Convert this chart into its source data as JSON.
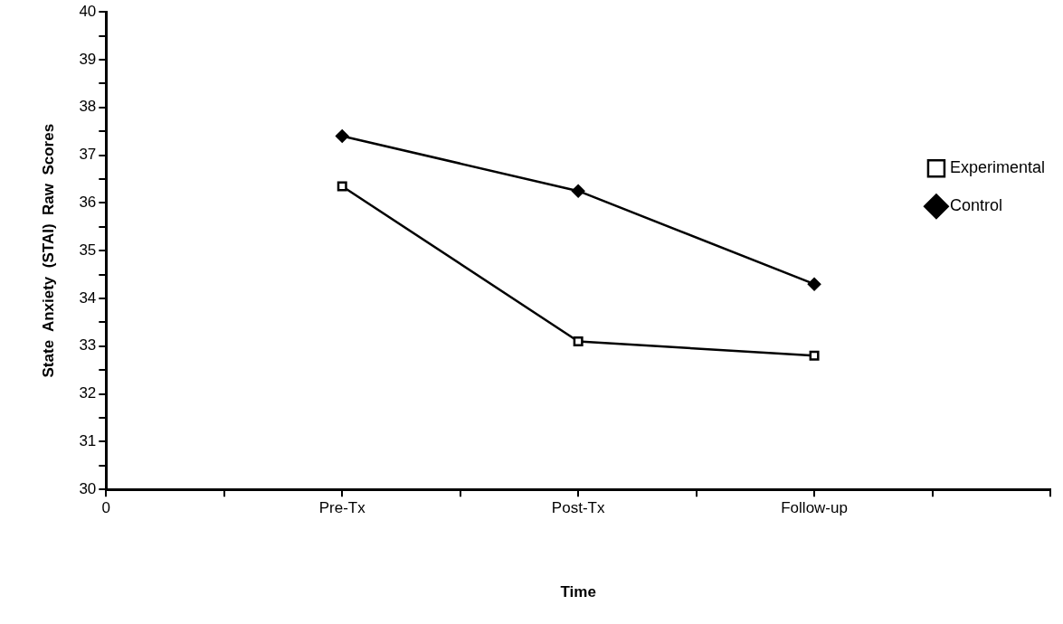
{
  "chart_data": {
    "type": "line",
    "xlabel": "Time",
    "ylabel": "State  Anxiety  (STAI)  Raw  Scores",
    "categories": [
      "0",
      null,
      "Pre-Tx",
      null,
      "Post-Tx",
      null,
      "Follow-up",
      null,
      null
    ],
    "series": [
      {
        "name": "Experimental",
        "color": "#000000",
        "marker": "square",
        "x": [
          "Pre-Tx",
          "Post-Tx",
          "Follow-up"
        ],
        "values": [
          36.35,
          33.1,
          32.8
        ]
      },
      {
        "name": "Control",
        "color": "#000000",
        "marker": "diamond",
        "x": [
          "Pre-Tx",
          "Post-Tx",
          "Follow-up"
        ],
        "values": [
          37.4,
          36.25,
          34.3
        ]
      }
    ],
    "ylim": [
      30,
      40
    ],
    "yticks": [
      30,
      {
        "value": 30.5,
        "label": null
      },
      31,
      {
        "value": 31.5,
        "label": null
      },
      32,
      {
        "value": 32.5,
        "label": null
      },
      33,
      {
        "value": 33.5,
        "label": null
      },
      34,
      {
        "value": 34.5,
        "label": null
      },
      35,
      {
        "value": 35.5,
        "label": null
      },
      36,
      {
        "value": 36.5,
        "label": null
      },
      37,
      {
        "value": 37.5,
        "label": null
      },
      38,
      {
        "value": 38.5,
        "label": null
      },
      39,
      {
        "value": 39.5,
        "label": null
      },
      40
    ],
    "grid": false,
    "legend": "top right",
    "line_style": "solid"
  }
}
